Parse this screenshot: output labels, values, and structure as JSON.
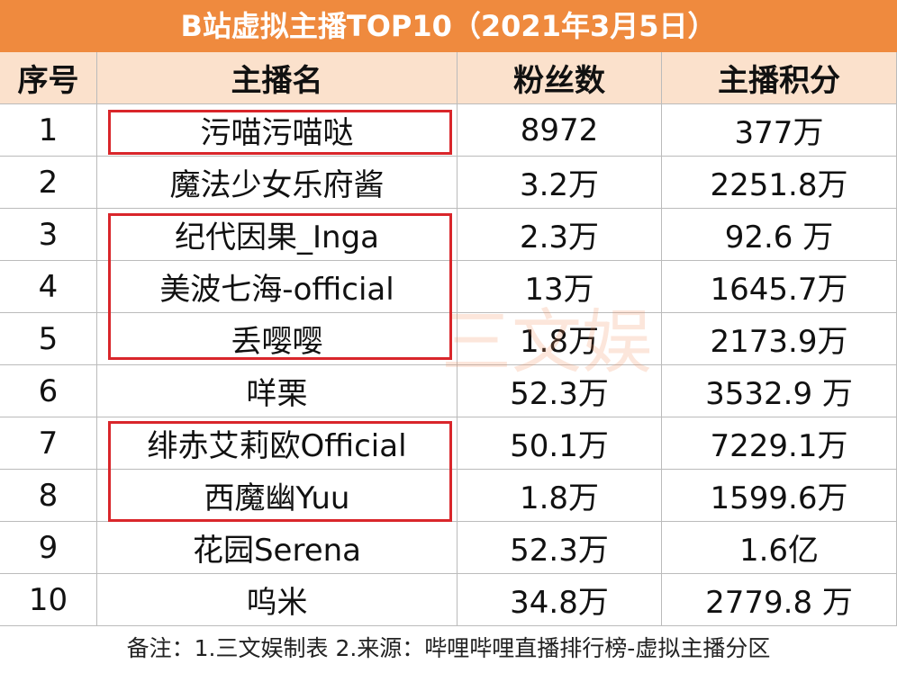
{
  "title": "B站虚拟主播TOP10（2021年3月5日）",
  "table": {
    "header": [
      "序号",
      "主播名",
      "粉丝数",
      "主播积分"
    ],
    "rows": [
      [
        "1",
        "污喵污喵哒",
        "8972",
        "377万"
      ],
      [
        "2",
        "魔法少女乐府酱",
        "3.2万",
        "2251.8万"
      ],
      [
        "3",
        "纪代因果_Inga",
        "2.3万",
        "92.6 万"
      ],
      [
        "4",
        "美波七海-official",
        "13万",
        "1645.7万"
      ],
      [
        "5",
        "丢嘤嘤",
        "1.8万",
        "2173.9万"
      ],
      [
        "6",
        "咩栗",
        "52.3万",
        "3532.9 万"
      ],
      [
        "7",
        "绯赤艾莉欧Official",
        "50.1万",
        "7229.1万"
      ],
      [
        "8",
        "西魔幽Yuu",
        "1.8万",
        "1599.6万"
      ],
      [
        "9",
        "花园Serena",
        "52.3万",
        "1.6亿"
      ],
      [
        "10",
        "呜米",
        "34.8万",
        "2779.8 万"
      ]
    ]
  },
  "note": "备注：1.三文娱制表 2.来源：哔哩哔哩直播排行榜-虚拟主播分区",
  "watermark": "三文娱"
}
